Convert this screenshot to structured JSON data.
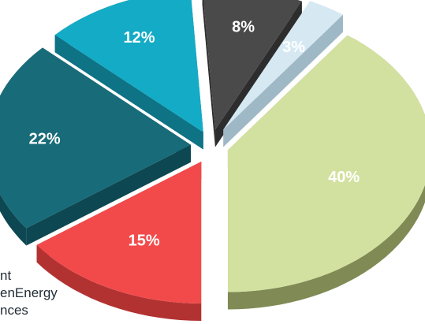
{
  "chart_data": {
    "type": "pie",
    "title": "",
    "exploded": true,
    "style": "3d",
    "slices": [
      {
        "label": "40%",
        "value": 40,
        "color": "#d2e19f",
        "side": "#7f8a55"
      },
      {
        "label": "15%",
        "value": 15,
        "color": "#f24a4a",
        "side": "#b23232"
      },
      {
        "label": "22%",
        "value": 22,
        "color": "#186b79",
        "side": "#0d4752"
      },
      {
        "label": "12%",
        "value": 12,
        "color": "#13abc6",
        "side": "#0d7385"
      },
      {
        "label": "8%",
        "value": 8,
        "color": "#4a4a4a",
        "side": "#2d2d2d"
      },
      {
        "label": "3%",
        "value": 3,
        "color": "#d6e9f3",
        "side": "#9fb8c5"
      }
    ]
  },
  "legend_fragments": [
    "nt",
    "enEnergy",
    "nces"
  ]
}
